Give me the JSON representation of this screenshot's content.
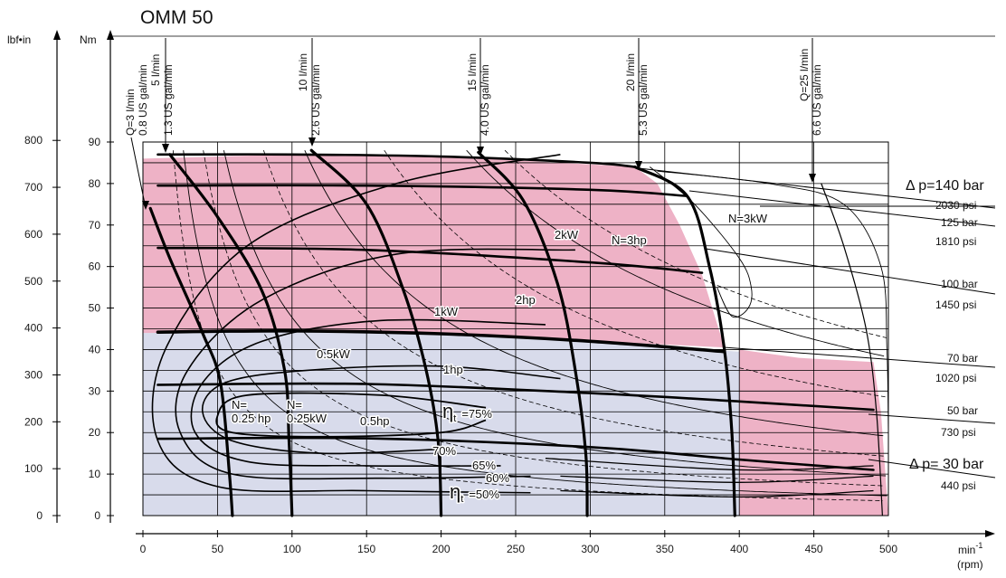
{
  "chart_data": {
    "type": "line",
    "title": "OMM 50",
    "xlabel": "min⁻¹ (rpm)",
    "xlabel_unit": "min",
    "xlabel_exp": "-1",
    "xlabel_rpm": "(rpm)",
    "ylabel_nm": "Nm",
    "ylabel_lbf": "lbf•in",
    "x_ticks": [
      "0",
      "50",
      "100",
      "150",
      "200",
      "250",
      "300",
      "350",
      "400",
      "450",
      "500"
    ],
    "xlim": [
      0,
      500
    ],
    "y_ticks_nm": [
      "0",
      "10",
      "20",
      "30",
      "40",
      "50",
      "60",
      "70",
      "80",
      "90"
    ],
    "ylim_nm": [
      0,
      90
    ],
    "y_ticks_lbf": [
      "0",
      "100",
      "200",
      "300",
      "400",
      "500",
      "600",
      "700",
      "800"
    ],
    "colors": {
      "continuous_region": "#d8dbeb",
      "intermittent_region": "#eeb2c6",
      "line": "#000000"
    },
    "regions": {
      "continuous": [
        [
          0,
          44
        ],
        [
          0,
          0
        ],
        [
          400,
          0
        ],
        [
          400,
          39.5
        ],
        [
          250,
          43
        ],
        [
          120,
          44.3
        ]
      ],
      "intermittent": [
        [
          0,
          86
        ],
        [
          100,
          87
        ],
        [
          200,
          86.6
        ],
        [
          330,
          84
        ],
        [
          345,
          80
        ],
        [
          360,
          70
        ],
        [
          375,
          58
        ],
        [
          390,
          40.5
        ],
        [
          250,
          43
        ],
        [
          120,
          44.3
        ],
        [
          0,
          44
        ],
        [
          400,
          40
        ],
        [
          440,
          38
        ],
        [
          490,
          37
        ],
        [
          495,
          25
        ],
        [
          500,
          0
        ],
        [
          400,
          0
        ]
      ]
    },
    "pressure_lines": [
      {
        "bar": "Δ p=140 bar",
        "psi": "2030 psi",
        "points": [
          [
            10,
            87
          ],
          [
            100,
            87
          ],
          [
            200,
            86.5
          ],
          [
            300,
            85
          ],
          [
            330,
            84
          ]
        ]
      },
      {
        "bar": "125 bar",
        "psi": "1810 psi",
        "points": [
          [
            10,
            79.5
          ],
          [
            150,
            79.5
          ],
          [
            300,
            78.5
          ],
          [
            365,
            77
          ]
        ]
      },
      {
        "bar": "100 bar",
        "psi": "1450 psi",
        "points": [
          [
            10,
            64.5
          ],
          [
            150,
            64
          ],
          [
            300,
            61
          ],
          [
            375,
            58.5
          ]
        ]
      },
      {
        "bar": "70 bar",
        "psi": "1020 psi",
        "points": [
          [
            10,
            44.2
          ],
          [
            100,
            44.5
          ],
          [
            200,
            43.8
          ],
          [
            300,
            42
          ],
          [
            390,
            39.5
          ]
        ]
      },
      {
        "bar": "50 bar",
        "psi": "730 psi",
        "points": [
          [
            10,
            31.5
          ],
          [
            150,
            31.7
          ],
          [
            300,
            29.5
          ],
          [
            400,
            27.5
          ],
          [
            490,
            25.5
          ]
        ]
      },
      {
        "bar": "Δ p= 30 bar",
        "psi": "440 psi",
        "points": [
          [
            10,
            18.5
          ],
          [
            150,
            18.6
          ],
          [
            300,
            16.5
          ],
          [
            400,
            13.5
          ],
          [
            490,
            11
          ]
        ]
      }
    ],
    "flow_lines": [
      {
        "lpm": "Q=3 l/min",
        "gpm": "0.8 US gal/min",
        "points": [
          [
            5,
            74
          ],
          [
            18,
            62
          ],
          [
            40,
            44
          ],
          [
            52,
            32
          ],
          [
            58,
            10
          ],
          [
            60,
            0
          ]
        ]
      },
      {
        "lpm": "5 l/min",
        "gpm": "1.3 US gal/min",
        "points": [
          [
            18,
            87
          ],
          [
            50,
            72
          ],
          [
            80,
            54
          ],
          [
            95,
            35
          ],
          [
            98,
            18
          ],
          [
            100,
            0
          ]
        ]
      },
      {
        "lpm": "10 l/min",
        "gpm": "2.6 US gal/min",
        "points": [
          [
            113,
            88
          ],
          [
            150,
            75
          ],
          [
            175,
            54
          ],
          [
            190,
            35
          ],
          [
            198,
            18
          ],
          [
            200,
            0
          ]
        ]
      },
      {
        "lpm": "15 l/min",
        "gpm": "4.0 US gal/min",
        "points": [
          [
            225,
            87.5
          ],
          [
            255,
            76
          ],
          [
            278,
            56
          ],
          [
            290,
            35
          ],
          [
            297,
            15
          ],
          [
            298,
            0
          ]
        ]
      },
      {
        "lpm": "20 l/min",
        "gpm": "5.3 US gal/min",
        "points": [
          [
            330,
            84
          ],
          [
            365,
            77
          ],
          [
            380,
            60
          ],
          [
            390,
            40
          ],
          [
            395,
            20
          ],
          [
            397,
            0
          ]
        ]
      },
      {
        "lpm": "Q=25 l/min",
        "gpm": "6.6 US gal/min",
        "points": [
          [
            455,
            80
          ],
          [
            470,
            65
          ],
          [
            485,
            45
          ],
          [
            492,
            25
          ],
          [
            496,
            0
          ]
        ]
      }
    ],
    "efficiency_labels": [
      "η",
      "t",
      "=75%",
      "70%",
      "65%",
      "60%",
      "η",
      "t",
      "=50%"
    ],
    "power_labels": [
      "N=3kW",
      "2kW",
      "N=3hp",
      "1kW",
      "2hp",
      "0.5kW",
      "1hp",
      "N=",
      "0.25 hp",
      "N=",
      "0.25kW",
      "0.5hp"
    ]
  }
}
